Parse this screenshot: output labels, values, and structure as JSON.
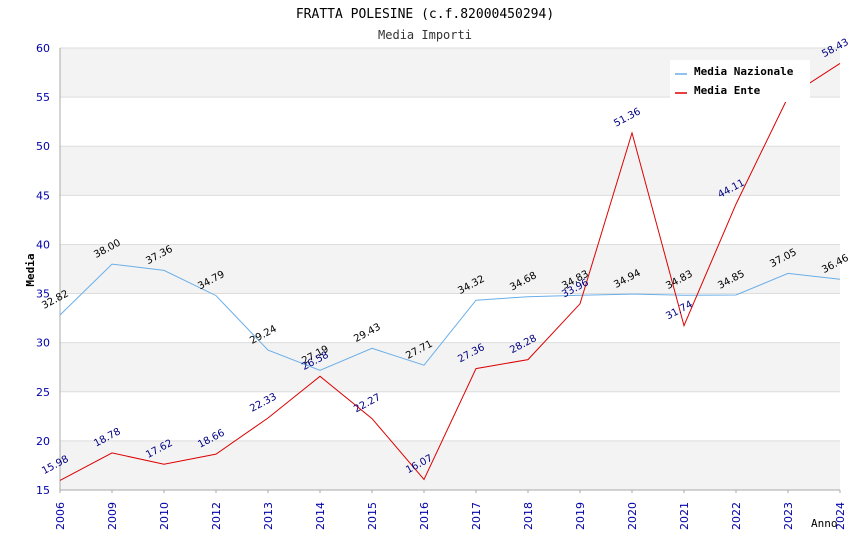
{
  "chart_data": {
    "type": "line",
    "title": "FRATTA POLESINE (c.f.82000450294)",
    "subtitle": "Media Importi",
    "xlabel": "Anno",
    "ylabel": "Media",
    "ylim": [
      15,
      60
    ],
    "yticks": [
      "15",
      "20",
      "25",
      "30",
      "35",
      "40",
      "45",
      "50",
      "55",
      "60"
    ],
    "categories": [
      "2006",
      "2009",
      "2010",
      "2012",
      "2013",
      "2014",
      "2015",
      "2016",
      "2017",
      "2018",
      "2019",
      "2020",
      "2021",
      "2022",
      "2023",
      "2024"
    ],
    "legend_position": "top-right",
    "series": [
      {
        "name": "Media Nazionale",
        "color": "#6aaee8",
        "values": [
          32.82,
          38.0,
          37.36,
          34.79,
          29.24,
          27.19,
          29.43,
          27.71,
          34.32,
          34.68,
          34.83,
          34.94,
          34.83,
          34.85,
          37.05,
          36.46
        ],
        "labels": [
          "32.82",
          "38.00",
          "37.36",
          "34.79",
          "29.24",
          "27.19",
          "29.43",
          "27.71",
          "34.32",
          "34.68",
          "34.83",
          "34.94",
          "34.83",
          "34.85",
          "37.05",
          "36.46"
        ]
      },
      {
        "name": "Media Ente",
        "color": "#dd0000",
        "values": [
          15.98,
          18.78,
          17.62,
          18.66,
          22.33,
          26.58,
          22.27,
          16.07,
          27.36,
          28.28,
          33.96,
          51.36,
          31.74,
          44.11,
          55.0,
          58.43
        ],
        "labels": [
          "15.98",
          "18.78",
          "17.62",
          "18.66",
          "22.33",
          "26.58",
          "22.27",
          "16.07",
          "27.36",
          "28.28",
          "33.96",
          "51.36",
          "31.74",
          "44.11",
          "",
          "58.43"
        ]
      }
    ]
  }
}
